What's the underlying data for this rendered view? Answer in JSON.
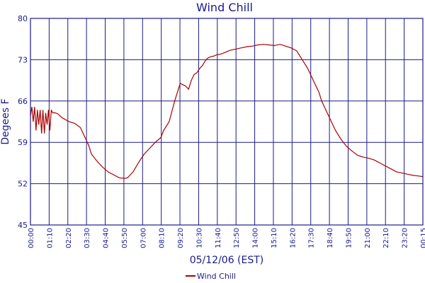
{
  "chart_data": {
    "type": "line",
    "title": "Wind Chill",
    "xlabel": "05/12/06 (EST)",
    "ylabel": "Degees F",
    "ylim": [
      45,
      80
    ],
    "yticks": [
      45,
      52,
      59,
      66,
      73,
      80
    ],
    "xlim": [
      "00:00",
      "00:15"
    ],
    "xticks": [
      "00:00",
      "01:10",
      "02:20",
      "03:30",
      "04:40",
      "05:50",
      "07:00",
      "08:10",
      "09:20",
      "10:30",
      "11:40",
      "12:50",
      "14:00",
      "15:10",
      "16:20",
      "17:30",
      "18:40",
      "19:50",
      "21:00",
      "22:10",
      "23:20",
      "00:15"
    ],
    "grid": true,
    "legend_position": "bottom-center",
    "colors": {
      "series": "#aa0000",
      "frame": "#1a1a8c",
      "grid": "#1a1a8c",
      "text": "#1a1a8c"
    },
    "series": [
      {
        "name": "Wind Chill",
        "x_minutes": [
          0,
          5,
          10,
          15,
          20,
          25,
          30,
          35,
          40,
          45,
          50,
          55,
          60,
          65,
          70,
          75,
          80,
          90,
          100,
          110,
          120,
          140,
          160,
          180,
          200,
          210,
          220,
          240,
          260,
          280,
          300,
          320,
          340,
          350,
          360,
          370,
          380,
          390,
          410,
          430,
          450,
          470,
          480,
          500,
          520,
          540,
          560,
          570,
          580,
          590,
          600,
          610,
          620,
          630,
          640,
          650,
          660,
          670,
          690,
          710,
          720,
          740,
          760,
          780,
          800,
          820,
          840,
          860,
          880,
          900,
          920,
          940,
          960,
          980,
          1000,
          1020,
          1040,
          1050,
          1060,
          1080,
          1090,
          1100,
          1120,
          1140,
          1160,
          1180,
          1200,
          1220,
          1240,
          1260,
          1280,
          1300,
          1320,
          1340,
          1360,
          1380,
          1400,
          1415
        ],
        "values": [
          63.5,
          65.0,
          62.5,
          65.0,
          61.0,
          64.5,
          62.0,
          64.5,
          60.5,
          64.5,
          60.5,
          64.0,
          62.0,
          64.5,
          61.0,
          64.5,
          64.0,
          64.0,
          63.8,
          63.3,
          63.0,
          62.5,
          62.2,
          61.5,
          59.5,
          58.5,
          57.0,
          55.8,
          54.8,
          54.0,
          53.5,
          53.0,
          52.9,
          53.0,
          53.5,
          54.0,
          54.8,
          55.6,
          57.0,
          58.0,
          59.0,
          59.8,
          61.0,
          62.5,
          66.0,
          69.0,
          68.5,
          68.0,
          69.5,
          70.5,
          70.8,
          71.5,
          72.0,
          72.8,
          73.3,
          73.5,
          73.6,
          73.8,
          74.0,
          74.4,
          74.6,
          74.8,
          75.0,
          75.2,
          75.3,
          75.5,
          75.6,
          75.5,
          75.4,
          75.6,
          75.3,
          75.0,
          74.5,
          73.0,
          71.5,
          69.5,
          67.5,
          66.0,
          65.0,
          63.0,
          62.0,
          61.0,
          59.5,
          58.3,
          57.5,
          56.8,
          56.5,
          56.3,
          56.0,
          55.5,
          55.0,
          54.5,
          54.0,
          53.8,
          53.6,
          53.4,
          53.3,
          53.2
        ]
      }
    ]
  }
}
